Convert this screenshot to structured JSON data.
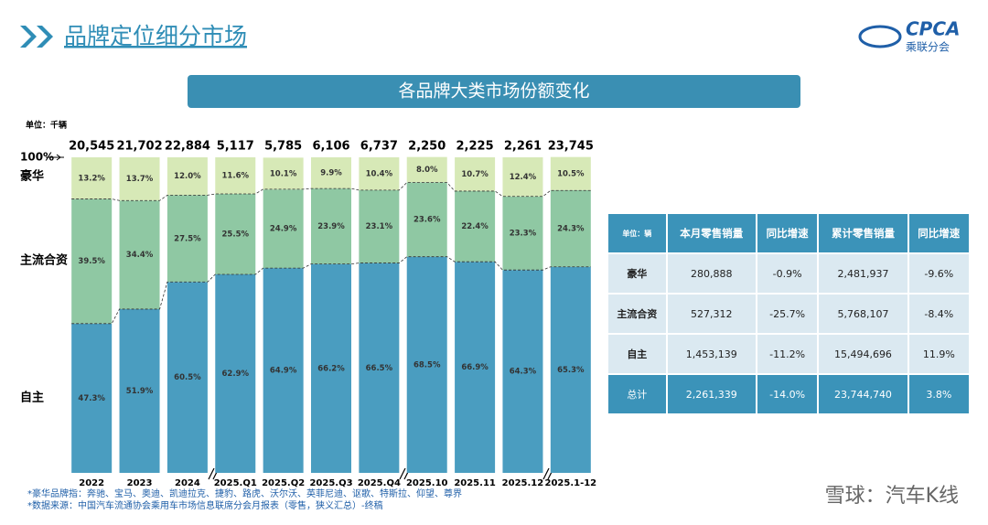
{
  "header": {
    "title": "品牌定位细分市场",
    "logo": "CPCA",
    "logo_sub": "乘联分会"
  },
  "chart_data": {
    "type": "stacked_bar",
    "title": "各品牌大类市场份额变化",
    "unit": "单位：千辆",
    "categories": [
      "2022",
      "2023",
      "2024",
      "2025.Q1",
      "2025.Q2",
      "2025.Q3",
      "2025.Q4",
      "2025.10",
      "2025.11",
      "2025.12",
      "2025.1-12"
    ],
    "series": [
      {
        "name": "自主",
        "color": "#4a9dc0",
        "values": [
          47.3,
          51.9,
          60.5,
          62.9,
          64.9,
          66.2,
          66.5,
          68.5,
          66.9,
          64.3,
          65.3
        ],
        "value_labels": [
          "47.3%",
          "51.9%",
          "60.5%",
          "62.9%",
          "64.9%",
          "66.2%",
          "66.5%",
          "68.5%",
          "66.9%",
          "64.3%",
          "65.3%"
        ]
      },
      {
        "name": "主流合资",
        "color": "#8fc8a3",
        "values": [
          39.5,
          34.4,
          27.5,
          25.5,
          24.9,
          23.9,
          23.1,
          23.6,
          22.4,
          23.3,
          24.3
        ],
        "value_labels": [
          "39.5%",
          "34.4%",
          "27.5%",
          "25.5%",
          "24.9%",
          "23.9%",
          "23.1%",
          "23.6%",
          "22.4%",
          "23.3%",
          "24.3%"
        ]
      },
      {
        "name": "豪华",
        "color": "#d7e9b7",
        "values": [
          13.2,
          13.7,
          12.0,
          11.6,
          10.1,
          9.9,
          10.4,
          8.0,
          10.7,
          12.4,
          10.5
        ],
        "value_labels": [
          "13.2%",
          "13.7%",
          "12.0%",
          "11.6%",
          "10.1%",
          "9.9%",
          "10.4%",
          "8.0%",
          "10.7%",
          "12.4%",
          "10.5%"
        ]
      }
    ],
    "totals": {
      "values": [
        20545,
        21702,
        22884,
        5117,
        5785,
        6106,
        6737,
        2250,
        2225,
        2261,
        23745
      ],
      "value_labels": [
        "20,545",
        "21,702",
        "22,884",
        "5,117",
        "5,785",
        "6,106",
        "6,737",
        "2,250",
        "2,225",
        "2,261",
        "23,745"
      ]
    },
    "ylim": [
      0,
      100
    ],
    "yticks": [
      {
        "value": 100,
        "label": "100%"
      }
    ]
  },
  "table": {
    "rows": [
      [
        "单位：辆",
        "本月零售销量",
        "同比增速",
        "累计零售销量",
        "同比增速"
      ],
      [
        "豪华",
        "280,888",
        "-0.9%",
        "2,481,937",
        "-9.6%"
      ],
      [
        "主流合资",
        "527,312",
        "-25.7%",
        "5,768,107",
        "-8.4%"
      ],
      [
        "自主",
        "1,453,139",
        "-11.2%",
        "15,494,696",
        "11.9%"
      ],
      [
        "总计",
        "2,261,339",
        "-14.0%",
        "23,744,740",
        "3.8%"
      ]
    ]
  },
  "footnotes": [
    "*豪华品牌指：奔驰、宝马、奥迪、凯迪拉克、捷豹、路虎、沃尔沃、英菲尼迪、讴歌、特斯拉、仰望、尊界",
    "*数据来源：中国汽车流通协会乘用车市场信息联席分会月报表（零售，狭义汇总）-终稿"
  ],
  "watermark": "雪球：汽车K线"
}
